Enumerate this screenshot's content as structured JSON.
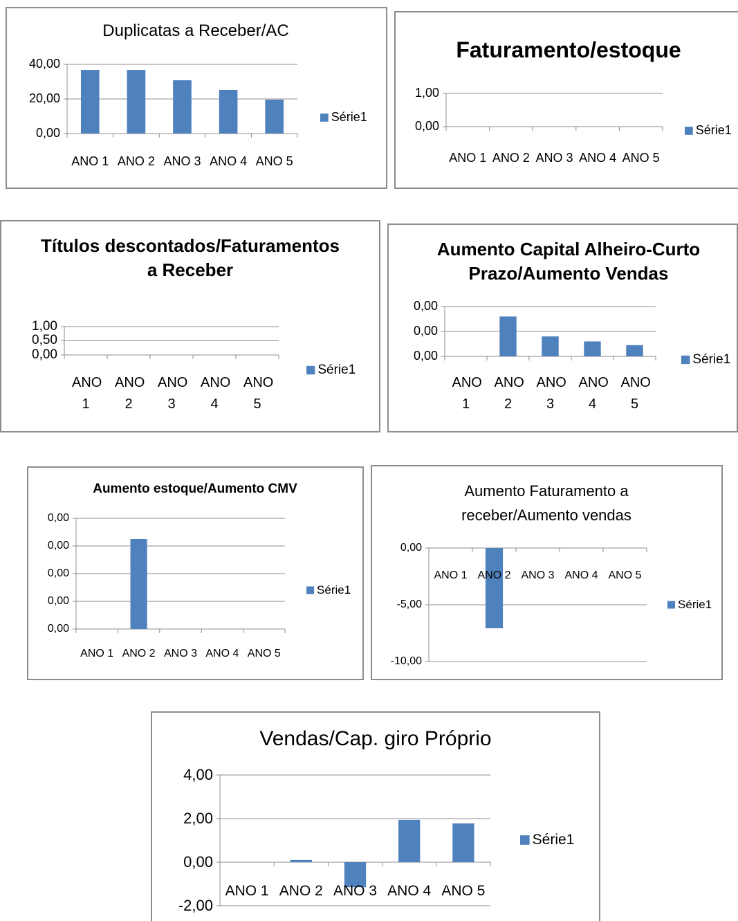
{
  "chart_data": [
    {
      "type": "bar",
      "title": "Duplicatas a Receber/AC",
      "categories": [
        "ANO 1",
        "ANO 2",
        "ANO 3",
        "ANO 4",
        "ANO 5"
      ],
      "series": [
        {
          "name": "Série1",
          "color": "#4f81bd",
          "values": [
            36.8,
            36.8,
            30.8,
            25.2,
            19.6
          ]
        }
      ],
      "ylim": [
        0,
        40
      ],
      "yticks": [
        {
          "value": 0,
          "label": "0,00"
        },
        {
          "value": 20,
          "label": "20,00"
        },
        {
          "value": 40,
          "label": "40,00"
        }
      ],
      "grid": true
    },
    {
      "type": "bar",
      "title": "Faturamento/estoque",
      "categories": [
        "ANO 1",
        "ANO 2",
        "ANO 3",
        "ANO 4",
        "ANO 5"
      ],
      "series": [
        {
          "name": "Série1",
          "color": "#4f81bd",
          "values": [
            0,
            0,
            0,
            0,
            0
          ]
        }
      ],
      "ylim": [
        0,
        1
      ],
      "yticks": [
        {
          "value": 0,
          "label": "0,00"
        },
        {
          "value": 1,
          "label": "1,00"
        }
      ],
      "grid": true
    },
    {
      "type": "bar",
      "title": "Títulos descontados/Faturamentos a Receber",
      "categories": [
        "ANO 1",
        "ANO 2",
        "ANO 3",
        "ANO 4",
        "ANO 5"
      ],
      "series": [
        {
          "name": "Série1",
          "color": "#4f81bd",
          "values": [
            0,
            0,
            0,
            0,
            0
          ]
        }
      ],
      "ylim": [
        0,
        1
      ],
      "yticks": [
        {
          "value": 0,
          "label": "0,00"
        },
        {
          "value": 0.5,
          "label": "0,50"
        },
        {
          "value": 1,
          "label": "1,00"
        }
      ],
      "grid": true
    },
    {
      "type": "bar",
      "title": "Aumento Capital Alheiro-Curto Prazo/Aumento Vendas",
      "categories": [
        "ANO 1",
        "ANO 2",
        "ANO 3",
        "ANO 4",
        "ANO 5"
      ],
      "series": [
        {
          "name": "Série1",
          "color": "#4f81bd",
          "values": [
            0,
            0.0032,
            0.0016,
            0.0012,
            0.0009
          ]
        }
      ],
      "ylim": [
        0,
        0.004
      ],
      "yticks": [
        {
          "value": 0,
          "label": "0,00"
        },
        {
          "value": 0.002,
          "label": "0,00"
        },
        {
          "value": 0.004,
          "label": "0,00"
        }
      ],
      "grid": true
    },
    {
      "type": "bar",
      "title": "Aumento estoque/Aumento CMV",
      "categories": [
        "ANO 1",
        "ANO 2",
        "ANO 3",
        "ANO 4",
        "ANO 5"
      ],
      "series": [
        {
          "name": "Série1",
          "color": "#4f81bd",
          "values": [
            0,
            0.00325,
            0,
            0,
            0
          ]
        }
      ],
      "ylim": [
        0,
        0.004
      ],
      "yticks": [
        {
          "value": 0,
          "label": "0,00"
        },
        {
          "value": 0.001,
          "label": "0,00"
        },
        {
          "value": 0.002,
          "label": "0,00"
        },
        {
          "value": 0.003,
          "label": "0,00"
        },
        {
          "value": 0.004,
          "label": "0,00"
        }
      ],
      "grid": true
    },
    {
      "type": "bar",
      "title": "Aumento Faturamento a receber/Aumento vendas",
      "categories": [
        "ANO 1",
        "ANO 2",
        "ANO 3",
        "ANO 4",
        "ANO 5"
      ],
      "series": [
        {
          "name": "Série1",
          "color": "#4f81bd",
          "values": [
            0,
            -7.07,
            0,
            0,
            0
          ]
        }
      ],
      "ylim": [
        -10,
        0
      ],
      "yticks": [
        {
          "value": -10,
          "label": "-10,00"
        },
        {
          "value": -5,
          "label": "-5,00"
        },
        {
          "value": 0,
          "label": "0,00"
        }
      ],
      "grid": true
    },
    {
      "type": "bar",
      "title": "Vendas/Cap. giro Próprio",
      "categories": [
        "ANO 1",
        "ANO 2",
        "ANO 3",
        "ANO 4",
        "ANO 5"
      ],
      "series": [
        {
          "name": "Série1",
          "color": "#4f81bd",
          "values": [
            0,
            0.1,
            -1.15,
            1.94,
            1.78
          ]
        }
      ],
      "ylim": [
        -2,
        4
      ],
      "yticks": [
        {
          "value": -2,
          "label": "-2,00"
        },
        {
          "value": 0,
          "label": "0,00"
        },
        {
          "value": 2,
          "label": "2,00"
        },
        {
          "value": 4,
          "label": "4,00"
        }
      ],
      "grid": true
    }
  ]
}
